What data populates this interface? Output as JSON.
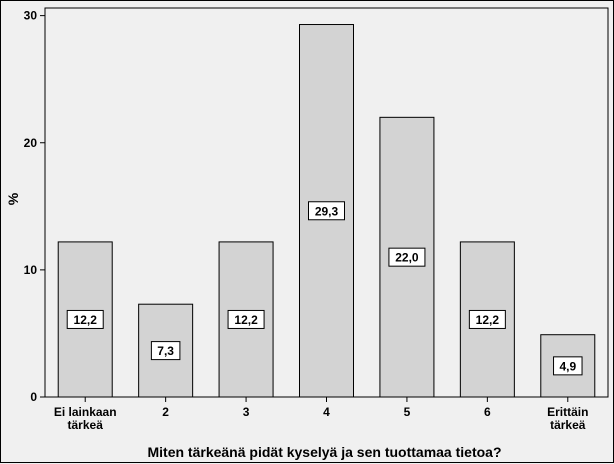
{
  "chart_data": {
    "type": "bar",
    "categories": [
      [
        "Ei lainkaan",
        "tärkeä"
      ],
      [
        "2"
      ],
      [
        "3"
      ],
      [
        "4"
      ],
      [
        "5"
      ],
      [
        "6"
      ],
      [
        "Erittäin",
        "tärkeä"
      ]
    ],
    "values": [
      12.2,
      7.3,
      12.2,
      29.3,
      22.0,
      12.2,
      4.9
    ],
    "data_labels": [
      "12,2",
      "7,3",
      "12,2",
      "29,3",
      "22,0",
      "12,2",
      "4,9"
    ],
    "xlabel": "Miten tärkeänä pidät kyselyä ja sen tuottamaa tietoa?",
    "ylabel": "%",
    "ylim": [
      0,
      30
    ],
    "yticks": [
      0,
      10,
      20,
      30
    ],
    "grid": false,
    "colors": {
      "bar_fill": "#d3d3d3",
      "bar_stroke": "#000000",
      "plot_background": "#f0f0f0"
    }
  }
}
